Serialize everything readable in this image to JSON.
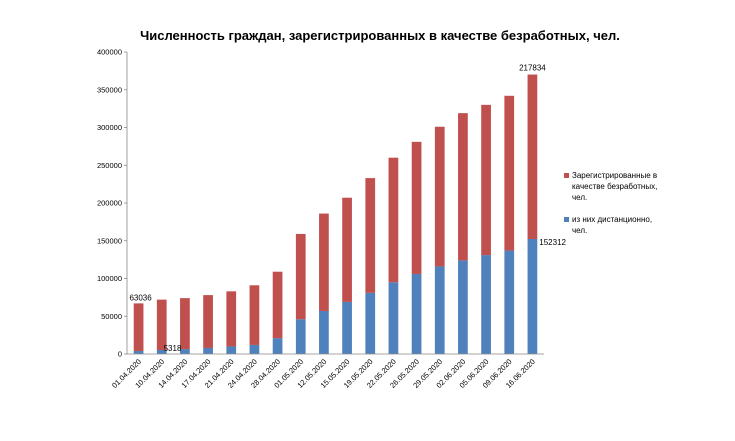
{
  "chart_data": {
    "type": "bar",
    "stacked": true,
    "title": "Численность граждан, зарегистрированных в качестве безработных, чел.",
    "xlabel": "",
    "ylabel": "",
    "ylim": [
      0,
      400000
    ],
    "y_ticks": [
      "0",
      "50000",
      "100000",
      "150000",
      "200000",
      "250000",
      "300000",
      "350000",
      "400000"
    ],
    "grid": false,
    "legend_position": "right",
    "categories": [
      "01.04.2020",
      "10.04.2020",
      "14.04.2020",
      "17.04.2020",
      "21.04.2020",
      "24.04.2020",
      "28.04.2020",
      "01.05.2020",
      "12.05.2020",
      "15.05.2020",
      "19.05.2020",
      "22.05.2020",
      "26.05.2020",
      "29.05.2020",
      "02.06.2020",
      "05.06.2020",
      "09.06.2020",
      "16.06.2020"
    ],
    "series": [
      {
        "name": "из них дистанционно, чел.",
        "color": "#4f81bd",
        "values": [
          4000,
          5318,
          6500,
          8000,
          10000,
          12000,
          21000,
          46000,
          57000,
          69000,
          81000,
          95000,
          106000,
          116000,
          124000,
          131000,
          137000,
          152312
        ]
      },
      {
        "name": "Зарегистрированные в качестве безработных, чел.",
        "color": "#c0504d",
        "values": [
          63036,
          66700,
          67500,
          70000,
          73000,
          79000,
          88000,
          113000,
          129000,
          138000,
          152000,
          165000,
          175000,
          185000,
          195000,
          199000,
          205000,
          217834
        ]
      }
    ],
    "data_labels": [
      {
        "text": "63036",
        "category": "01.04.2020",
        "series": 1
      },
      {
        "text": "5318",
        "category": "10.04.2020",
        "series": 0
      },
      {
        "text": "217834",
        "category": "16.06.2020",
        "series": 1
      },
      {
        "text": "152312",
        "category": "16.06.2020",
        "series": 0
      }
    ],
    "legend": [
      {
        "label_lines": [
          "Зарегистрированные в",
          "качестве безработных,",
          "чел."
        ],
        "color": "#c0504d"
      },
      {
        "label_lines": [
          "из них дистанционно,",
          "чел."
        ],
        "color": "#4f81bd"
      }
    ]
  }
}
